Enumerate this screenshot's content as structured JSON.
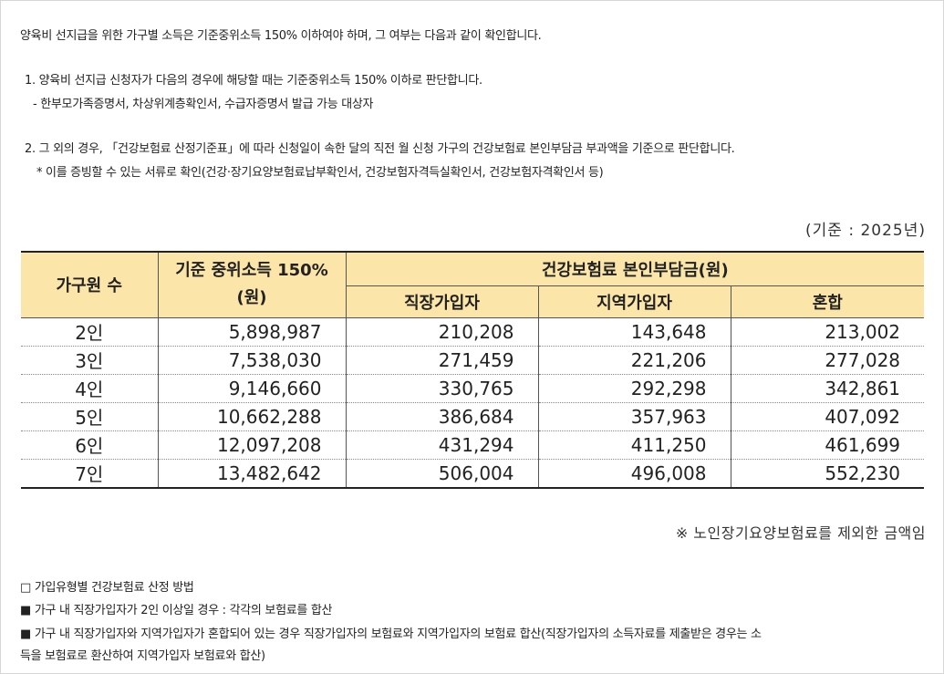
{
  "intro": "양육비 선지급을 위한 가구별 소득은 기준중위소득 150% 이하여야 하며, 그 여부는 다음과 같이 확인합니다.",
  "criteria": [
    {
      "text": "1. 양육비 선지급 신청자가 다음의 경우에 해당할 때는 기준중위소득 150% 이하로 판단합니다.",
      "detail": "- 한부모가족증명서, 차상위계층확인서, 수급자증명서 발급 가능 대상자"
    },
    {
      "text": "2. 그 외의 경우, 「건강보험료 산정기준표」에 따라 신청일이 속한 달의 직전 월 신청 가구의 건강보험료 본인부담금 부과액을 기준으로 판단합니다.",
      "detail": "* 이를 증빙할 수 있는 서류로 확인(건강·장기요양보험료납부확인서, 건강보험자격득실확인서, 건강보험자격확인서 등)"
    }
  ],
  "basis": "(기준 : 2025년)",
  "table": {
    "col_household": "가구원 수",
    "col_median": "기준 중위소득 150%(원)",
    "col_premium_group": "건강보험료 본인부담금(원)",
    "col_employee": "직장가입자",
    "col_regional": "지역가입자",
    "col_mixed": "혼합",
    "rows": [
      [
        "2인",
        "5,898,987",
        "210,208",
        "143,648",
        "213,002"
      ],
      [
        "3인",
        "7,538,030",
        "271,459",
        "221,206",
        "277,028"
      ],
      [
        "4인",
        "9,146,660",
        "330,765",
        "292,298",
        "342,861"
      ],
      [
        "5인",
        "10,662,288",
        "386,684",
        "357,963",
        "407,092"
      ],
      [
        "6인",
        "12,097,208",
        "431,294",
        "411,250",
        "461,699"
      ],
      [
        "7인",
        "13,482,642",
        "506,004",
        "496,008",
        "552,230"
      ]
    ]
  },
  "note": "※ 노인장기요양보험료를 제외한 금액임",
  "method_title": "□ 가입유형별 건강보험료 산정 방법",
  "method_items": [
    "■ 가구 내 직장가입자가 2인 이상일 경우 : 각각의 보험료를 합산",
    "■ 가구 내 직장가입자와 지역가입자가 혼합되어 있는 경우 직장가입자의 보험료와 지역가입자의 보험료 합산(직장가입자의 소득자료를 제출받은 경우는 소",
    "득을 보험료로 환산하여 지역가입자 보험료와 합산)"
  ]
}
